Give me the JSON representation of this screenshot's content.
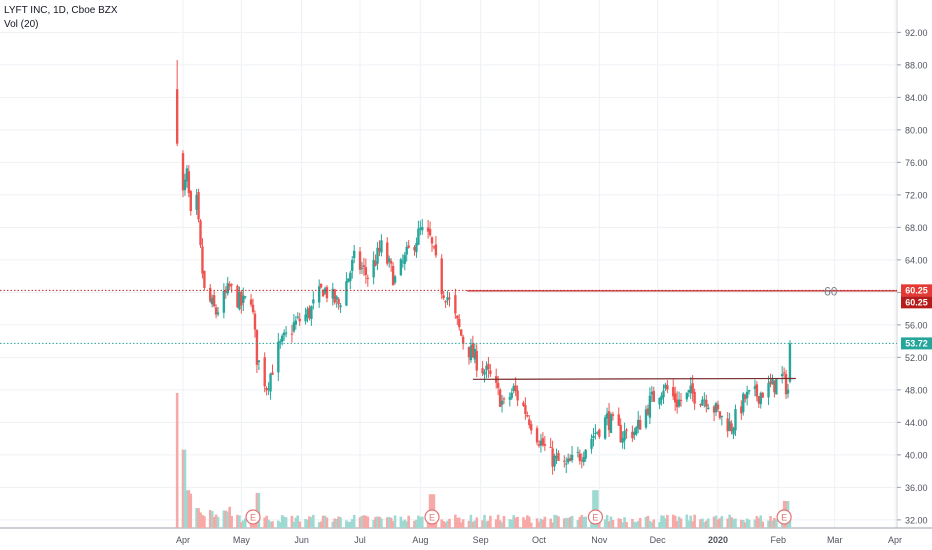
{
  "header": {
    "symbol_line": "LYFT INC, 1D, Cboe BZX",
    "volume_line": "Vol (20)"
  },
  "colors": {
    "up": "#26a69a",
    "down": "#ef5350",
    "resistance": "#c62828",
    "current": "#26a69a",
    "trendline": "#7a2b2b",
    "grid": "#eef1f5"
  },
  "chart_data": {
    "type": "candlestick",
    "title": "LYFT INC, 1D, Cboe BZX",
    "volume_indicator": "Vol (20)",
    "ylim": [
      31,
      95
    ],
    "y_ticks": [
      "32.00",
      "36.00",
      "40.00",
      "44.00",
      "48.00",
      "52.00",
      "56.00",
      "60.00",
      "64.00",
      "68.00",
      "72.00",
      "76.00",
      "80.00",
      "84.00",
      "88.00",
      "92.00"
    ],
    "x_ticks": [
      {
        "label": "Apr",
        "date": "2019-04-01"
      },
      {
        "label": "May",
        "date": "2019-05-01"
      },
      {
        "label": "Jun",
        "date": "2019-06-01"
      },
      {
        "label": "Jul",
        "date": "2019-07-01"
      },
      {
        "label": "Aug",
        "date": "2019-08-01"
      },
      {
        "label": "Sep",
        "date": "2019-09-01"
      },
      {
        "label": "Oct",
        "date": "2019-10-01"
      },
      {
        "label": "Nov",
        "date": "2019-11-01"
      },
      {
        "label": "Dec",
        "date": "2019-12-01"
      },
      {
        "label": "2020",
        "date": "2020-01-01"
      },
      {
        "label": "Feb",
        "date": "2020-02-01"
      },
      {
        "label": "Mar",
        "date": "2020-03-01"
      },
      {
        "label": "Apr",
        "date": "2020-04-01"
      }
    ],
    "grid": true,
    "date_range": [
      "2019-03-29",
      "2020-02-07"
    ],
    "price_path": [
      [
        "2019-03-29",
        78.3
      ],
      [
        "2019-04-01",
        72.0
      ],
      [
        "2019-04-03",
        74.5
      ],
      [
        "2019-04-05",
        69.0
      ],
      [
        "2019-04-08",
        71.0
      ],
      [
        "2019-04-10",
        65.0
      ],
      [
        "2019-04-12",
        60.0
      ],
      [
        "2019-04-18",
        57.5
      ],
      [
        "2019-04-25",
        60.5
      ],
      [
        "2019-05-01",
        58.5
      ],
      [
        "2019-05-06",
        59.5
      ],
      [
        "2019-05-09",
        52.0
      ],
      [
        "2019-05-14",
        48.5
      ],
      [
        "2019-05-20",
        53.0
      ],
      [
        "2019-05-28",
        56.0
      ],
      [
        "2019-06-05",
        57.5
      ],
      [
        "2019-06-12",
        60.5
      ],
      [
        "2019-06-20",
        58.5
      ],
      [
        "2019-06-28",
        64.0
      ],
      [
        "2019-07-05",
        62.0
      ],
      [
        "2019-07-12",
        65.5
      ],
      [
        "2019-07-19",
        61.5
      ],
      [
        "2019-07-26",
        65.0
      ],
      [
        "2019-08-01",
        67.5
      ],
      [
        "2019-08-06",
        66.5
      ],
      [
        "2019-08-09",
        63.5
      ],
      [
        "2019-08-12",
        60.5
      ],
      [
        "2019-08-15",
        59.5
      ],
      [
        "2019-08-23",
        54.0
      ],
      [
        "2019-08-30",
        51.5
      ],
      [
        "2019-09-06",
        49.5
      ],
      [
        "2019-09-13",
        46.0
      ],
      [
        "2019-09-18",
        48.0
      ],
      [
        "2019-09-25",
        45.0
      ],
      [
        "2019-10-02",
        41.5
      ],
      [
        "2019-10-08",
        39.5
      ],
      [
        "2019-10-15",
        38.5
      ],
      [
        "2019-10-22",
        40.0
      ],
      [
        "2019-10-29",
        42.5
      ],
      [
        "2019-11-05",
        44.5
      ],
      [
        "2019-11-12",
        42.5
      ],
      [
        "2019-11-20",
        43.0
      ],
      [
        "2019-11-27",
        46.5
      ],
      [
        "2019-12-04",
        48.5
      ],
      [
        "2019-12-11",
        46.5
      ],
      [
        "2019-12-18",
        47.5
      ],
      [
        "2019-12-26",
        47.0
      ],
      [
        "2020-01-03",
        44.5
      ],
      [
        "2020-01-08",
        43.5
      ],
      [
        "2020-01-15",
        47.0
      ],
      [
        "2020-01-22",
        47.5
      ],
      [
        "2020-01-29",
        48.5
      ],
      [
        "2020-02-03",
        49.5
      ],
      [
        "2020-02-06",
        48.0
      ],
      [
        "2020-02-07",
        53.72
      ]
    ],
    "annotations": [
      {
        "type": "horizontal_line",
        "value": 60.25,
        "label": "60.25",
        "color": "#c62828"
      },
      {
        "type": "text",
        "value": 60,
        "text": "60",
        "date": "2020-02-28"
      },
      {
        "type": "horizontal_line",
        "value": 53.72,
        "label": "53.72",
        "style": "dotted",
        "color": "#26a69a"
      },
      {
        "type": "trendline",
        "from": [
          "2019-08-28",
          49.3
        ],
        "to": [
          "2020-02-10",
          49.4
        ]
      }
    ],
    "earnings_markers": [
      {
        "label": "E",
        "date": "2019-05-07"
      },
      {
        "label": "E",
        "date": "2019-08-07"
      },
      {
        "label": "E",
        "date": "2019-10-30"
      },
      {
        "label": "E",
        "date": "2020-02-04"
      }
    ],
    "price_labels": [
      {
        "text": "60.25",
        "value": 60.25,
        "style": "red"
      },
      {
        "text": "60.25",
        "value": 60.25,
        "style": "darkred"
      },
      {
        "text": "53.72",
        "value": 53.72,
        "style": "green"
      }
    ],
    "volume": {
      "relative_peaks": [
        [
          "2019-03-29",
          1.0
        ],
        [
          "2019-04-01",
          0.58
        ],
        [
          "2019-04-03",
          0.28
        ],
        [
          "2019-05-10",
          0.26
        ],
        [
          "2019-08-07",
          0.25
        ],
        [
          "2019-10-30",
          0.28
        ],
        [
          "2020-02-05",
          0.2
        ]
      ]
    }
  }
}
